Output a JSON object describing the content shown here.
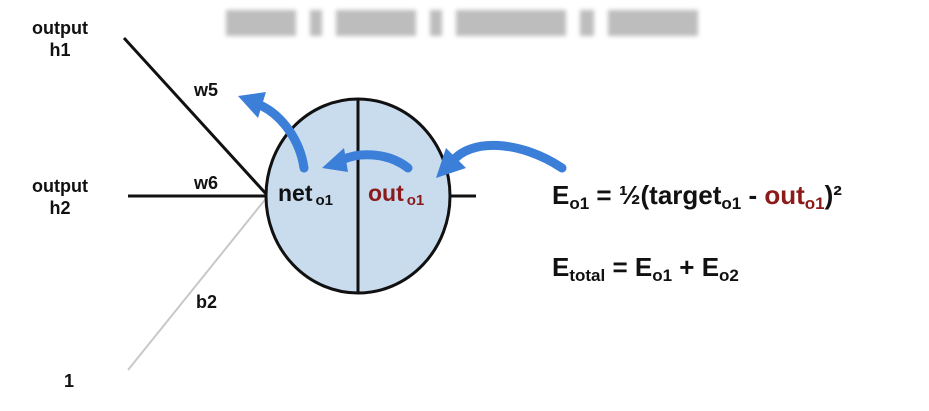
{
  "inputs": {
    "h1_line1": "output",
    "h1_line2": "h1",
    "h2_line1": "output",
    "h2_line2": "h2",
    "bias_input": "1"
  },
  "weights": {
    "w5": "w5",
    "w6": "w6",
    "b2": "b2"
  },
  "neuron": {
    "net_label": "net",
    "net_sub": "o1",
    "out_label": "out",
    "out_sub": "o1"
  },
  "equations": {
    "eq1_lhs": "E",
    "eq1_lhs_sub": "o1",
    "eq1_mid": " = ½(target",
    "eq1_target_sub": "o1",
    "eq1_minus": " - ",
    "eq1_out": "out",
    "eq1_out_sub": "o1",
    "eq1_tail": ")²",
    "eq2_lhs": "E",
    "eq2_lhs_sub": "total",
    "eq2_mid": " = E",
    "eq2_sub1": "o1",
    "eq2_plus": " + E",
    "eq2_sub2": "o2"
  },
  "colors": {
    "neuron_fill": "#c9dcee",
    "arrow": "#3b7fd9",
    "highlight_red": "#8b1a1a"
  }
}
